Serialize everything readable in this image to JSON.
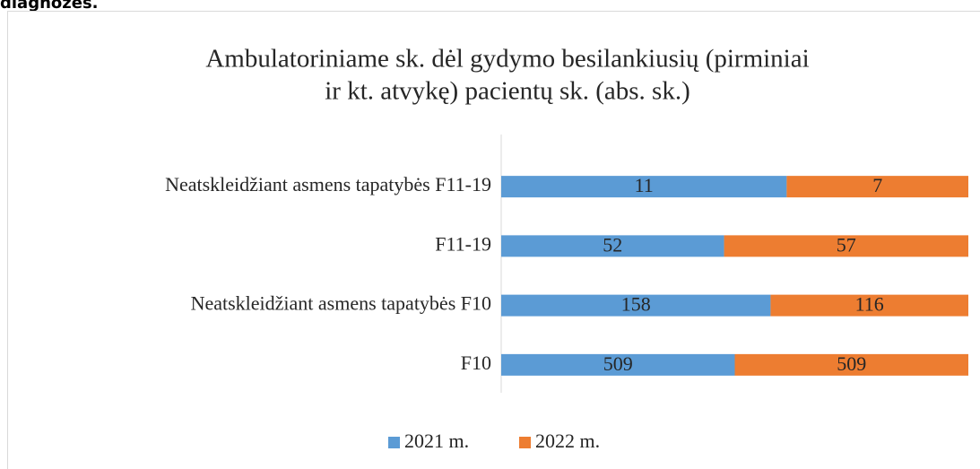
{
  "page_heading": "diagnozės.",
  "chart_data": {
    "type": "bar",
    "orientation": "horizontal",
    "stacking": "percent",
    "title": [
      "Ambulatoriniame sk. dėl gydymo besilankiusių (pirminiai",
      "ir kt. atvykę) pacientų sk. (abs. sk.)"
    ],
    "categories": [
      "Neatskleidžiant asmens tapatybės F11-19",
      "F11-19",
      "Neatskleidžiant asmens tapatybės F10",
      "F10"
    ],
    "series": [
      {
        "name": "2021 m.",
        "color": "#5b9bd5",
        "values": [
          11,
          52,
          158,
          509
        ]
      },
      {
        "name": "2022 m.",
        "color": "#ed7d31",
        "values": [
          7,
          57,
          116,
          509
        ]
      }
    ],
    "legend": "bottom"
  }
}
